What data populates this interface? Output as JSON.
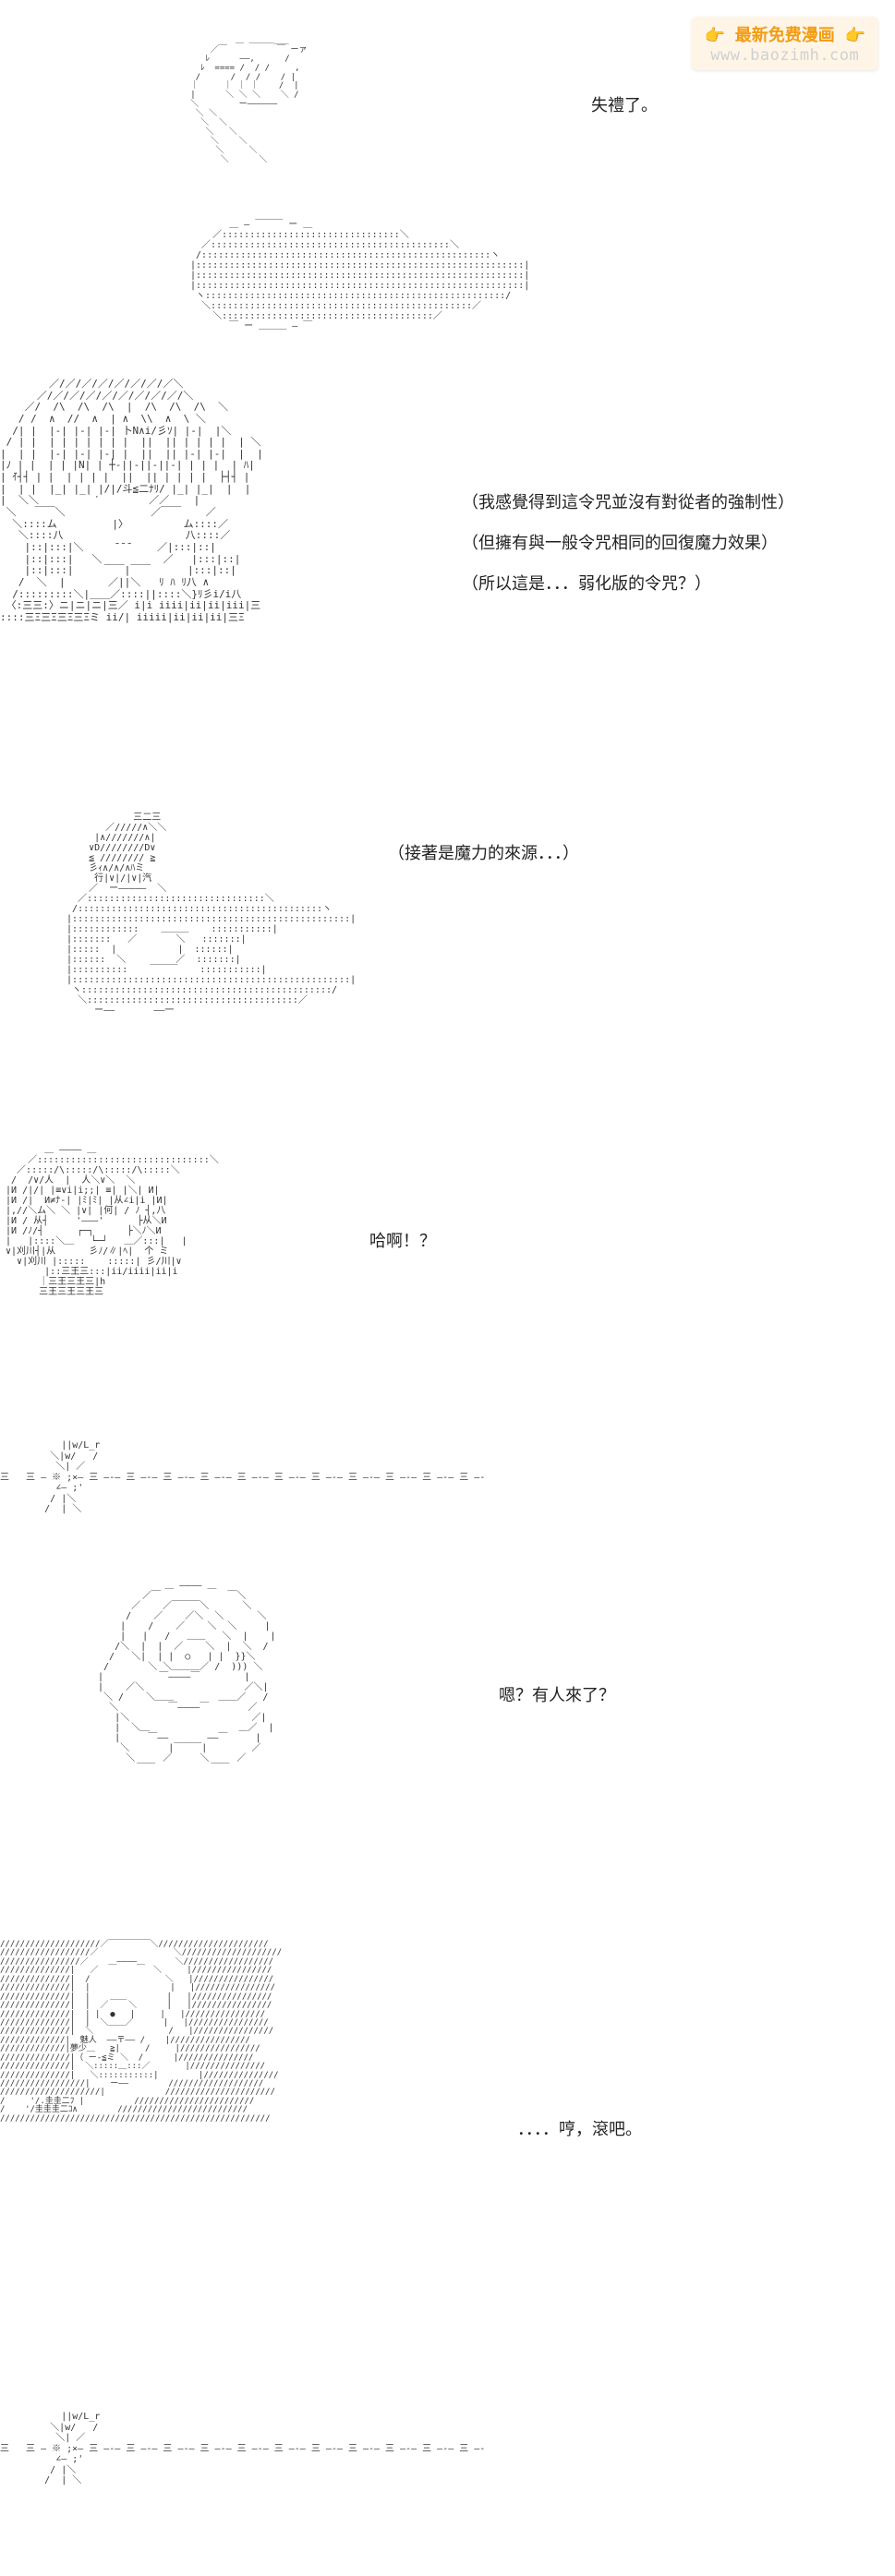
{
  "watermark": {
    "top_text": "👉 最新免费漫画 👉",
    "bottom_text": "www.baozimh.com",
    "bg_color": "#fef5e7",
    "text_color_top": "#f39c12",
    "text_color_bottom": "#d0d0d0"
  },
  "panels": [
    {
      "id": "p1",
      "dialogue": "失禮了。",
      "art_type": "hand_reaching_sphere"
    },
    {
      "id": "p2",
      "dialogue_lines": [
        "（我感覺得到這令咒並沒有對從者的強制性）",
        "（但擁有與一般令咒相同的回復魔力效果）",
        "（所以這是．．．弱化版的令咒？）"
      ],
      "art_type": "male_face_closeup"
    },
    {
      "id": "p3",
      "dialogue": "（接著是魔力的來源．．．）",
      "art_type": "crystal_gem"
    },
    {
      "id": "p4",
      "dialogue": "哈啊！？",
      "art_type": "shocked_face"
    },
    {
      "id": "p5",
      "dialogue": "",
      "art_type": "spark_divider_line"
    },
    {
      "id": "p6",
      "dialogue": "嗯？有人來了？",
      "art_type": "female_figure_back"
    },
    {
      "id": "p7",
      "dialogue": "．．．．哼，滾吧。",
      "art_type": "shaded_profile_face"
    },
    {
      "id": "p8",
      "dialogue": "",
      "art_type": "spark_divider_line"
    }
  ],
  "colors": {
    "background": "#ffffff",
    "text": "#222222",
    "ascii": "#333333"
  },
  "typography": {
    "dialogue_fontsize": 18,
    "ascii_fontsize": 11,
    "ascii_font": "MS PGothic"
  }
}
